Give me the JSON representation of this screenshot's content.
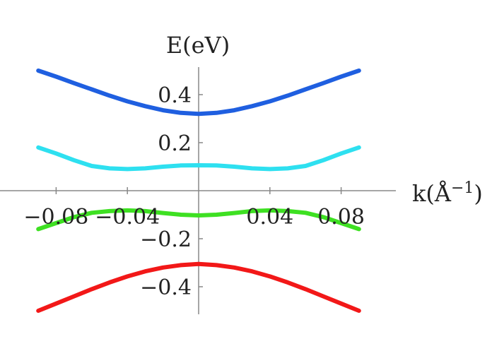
{
  "chart_data": {
    "type": "line",
    "title": "",
    "xlabel": "k(Å",
    "xlabel_sup": "−1",
    "xlabel_close": ")",
    "ylabel": "E(eV)",
    "xlim": [
      -0.105,
      0.105
    ],
    "ylim": [
      -0.5,
      0.5
    ],
    "grid": false,
    "x_ticks": [
      {
        "value": -0.08,
        "label": "−0.08"
      },
      {
        "value": -0.04,
        "label": "−0.04"
      },
      {
        "value": 0.04,
        "label": "0.04"
      },
      {
        "value": 0.08,
        "label": "0.08"
      }
    ],
    "y_ticks": [
      {
        "value": 0.4,
        "label": "0.4"
      },
      {
        "value": 0.2,
        "label": "0.2"
      },
      {
        "value": -0.2,
        "label": "−0.2"
      },
      {
        "value": -0.4,
        "label": "−0.4"
      }
    ],
    "x": [
      -0.09,
      -0.08,
      -0.07,
      -0.06,
      -0.05,
      -0.04,
      -0.03,
      -0.02,
      -0.01,
      0,
      0.01,
      0.02,
      0.03,
      0.04,
      0.05,
      0.06,
      0.07,
      0.08,
      0.09
    ],
    "series": [
      {
        "color": "#1f5fe0",
        "values": [
          0.5,
          0.475,
          0.448,
          0.422,
          0.396,
          0.372,
          0.352,
          0.335,
          0.324,
          0.32,
          0.324,
          0.335,
          0.352,
          0.372,
          0.396,
          0.422,
          0.448,
          0.475,
          0.5
        ]
      },
      {
        "color": "#2ee0f0",
        "values": [
          0.18,
          0.155,
          0.127,
          0.103,
          0.093,
          0.09,
          0.093,
          0.1,
          0.105,
          0.106,
          0.105,
          0.1,
          0.093,
          0.09,
          0.093,
          0.103,
          0.127,
          0.155,
          0.18
        ]
      },
      {
        "color": "#3ee022",
        "values": [
          -0.16,
          -0.135,
          -0.11,
          -0.092,
          -0.085,
          -0.082,
          -0.085,
          -0.093,
          -0.1,
          -0.103,
          -0.1,
          -0.093,
          -0.085,
          -0.082,
          -0.085,
          -0.092,
          -0.11,
          -0.135,
          -0.16
        ]
      },
      {
        "color": "#f21818",
        "values": [
          -0.5,
          -0.47,
          -0.44,
          -0.41,
          -0.382,
          -0.357,
          -0.336,
          -0.32,
          -0.31,
          -0.305,
          -0.31,
          -0.32,
          -0.336,
          -0.357,
          -0.382,
          -0.41,
          -0.44,
          -0.47,
          -0.5
        ]
      }
    ]
  }
}
